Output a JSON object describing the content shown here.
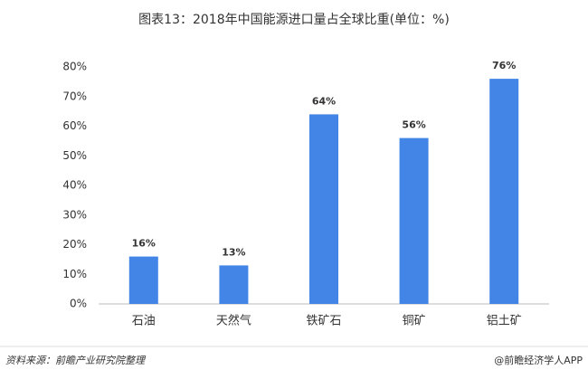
{
  "chart_data": {
    "type": "bar",
    "title": "图表13：2018年中国能源进口量占全球比重(单位：%)",
    "categories": [
      "石油",
      "天然气",
      "铁矿石",
      "铜矿",
      "铝土矿"
    ],
    "values": [
      16,
      13,
      64,
      56,
      76
    ],
    "value_labels": [
      "16%",
      "13%",
      "64%",
      "56%",
      "76%"
    ],
    "color": "#4285e6",
    "ylim": [
      0,
      80
    ],
    "yticks": [
      {
        "value": 0,
        "label": "0%"
      },
      {
        "value": 10,
        "label": "10%"
      },
      {
        "value": 20,
        "label": "20%"
      },
      {
        "value": 30,
        "label": "30%"
      },
      {
        "value": 40,
        "label": "40%"
      },
      {
        "value": 50,
        "label": "50%"
      },
      {
        "value": 60,
        "label": "60%"
      },
      {
        "value": 70,
        "label": "70%"
      },
      {
        "value": 80,
        "label": "80%"
      }
    ],
    "grid": false,
    "source": "资料来源：前瞻产业研究院整理",
    "credit": "@前瞻经济学人APP"
  }
}
